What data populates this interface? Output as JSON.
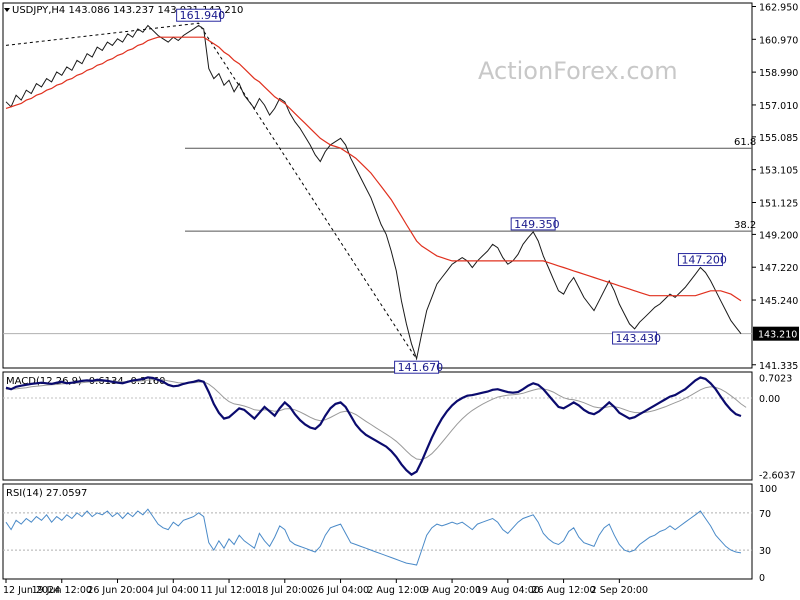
{
  "watermark": "ActionForex.com",
  "colors": {
    "price": "#1a1a1a",
    "ema": "#e0301e",
    "macd": "#0b0b6e",
    "signal": "#9a9a9a",
    "rsi": "#4a8ac8",
    "fib": "#555555",
    "label_border": "#2a2aa0",
    "label_text": "#1a1a8c"
  },
  "chart_data": [
    {
      "type": "line",
      "panel": "price",
      "title": "USDJPY,H4  143.086 143.237 143.031 143.210",
      "ylim": [
        141.2,
        163.1
      ],
      "y_ticks": [
        "162.950",
        "160.970",
        "158.990",
        "157.010",
        "155.085",
        "153.105",
        "151.125",
        "149.200",
        "147.220",
        "145.240",
        "143.210",
        "141.335"
      ],
      "y_tick_values": [
        162.95,
        160.97,
        158.99,
        157.01,
        155.085,
        153.105,
        151.125,
        149.2,
        147.22,
        145.24,
        143.21,
        141.335
      ],
      "current_price": "143.210",
      "x_ticks": [
        "12 Jun 2024",
        "19 Jun 12:00",
        "26 Jun 20:00",
        "4 Jul 04:00",
        "11 Jul 12:00",
        "18 Jul 20:00",
        "26 Jul 04:00",
        "2 Aug 12:00",
        "9 Aug 20:00",
        "19 Aug 04:00",
        "26 Aug 12:00",
        "2 Sep 20:00"
      ],
      "x_tick_index": [
        0,
        11,
        22,
        33,
        44,
        55,
        66,
        77,
        88,
        99,
        110,
        121
      ],
      "series": [
        {
          "key": "close",
          "values": [
            157.2,
            156.9,
            157.6,
            157.3,
            157.9,
            157.7,
            158.3,
            158.1,
            158.6,
            158.4,
            159.0,
            158.8,
            159.3,
            159.1,
            159.7,
            159.5,
            160.1,
            159.9,
            160.5,
            160.3,
            160.8,
            160.6,
            161.0,
            160.8,
            161.3,
            161.1,
            161.6,
            161.4,
            161.8,
            161.5,
            161.2,
            161.0,
            160.8,
            161.1,
            160.9,
            161.2,
            161.4,
            161.6,
            161.8,
            161.6,
            159.2,
            158.6,
            158.9,
            158.2,
            158.5,
            157.8,
            158.3,
            157.6,
            157.2,
            156.8,
            157.4,
            157.0,
            156.4,
            156.8,
            157.4,
            157.2,
            156.5,
            156.0,
            155.6,
            155.1,
            154.6,
            154.0,
            153.6,
            154.2,
            154.6,
            154.8,
            155.0,
            154.6,
            153.8,
            153.2,
            152.6,
            152.0,
            151.4,
            150.6,
            149.8,
            149.2,
            148.2,
            147.0,
            145.2,
            143.8,
            142.6,
            141.7,
            143.2,
            144.6,
            145.4,
            146.2,
            146.6,
            147.0,
            147.4,
            147.6,
            147.8,
            147.6,
            147.2,
            147.6,
            147.9,
            148.2,
            148.6,
            148.4,
            147.8,
            147.4,
            147.6,
            148.0,
            148.6,
            149.0,
            149.35,
            148.8,
            147.9,
            147.2,
            146.5,
            145.8,
            145.6,
            146.2,
            146.6,
            146.0,
            145.4,
            145.0,
            144.6,
            145.2,
            145.8,
            146.4,
            145.8,
            145.0,
            144.4,
            143.8,
            143.5,
            143.9,
            144.2,
            144.5,
            144.8,
            145.0,
            145.3,
            145.6,
            145.4,
            145.7,
            146.0,
            146.4,
            146.8,
            147.2,
            146.9,
            146.4,
            145.8,
            145.2,
            144.6,
            144.0,
            143.6,
            143.21
          ]
        },
        {
          "key": "ema",
          "values": [
            156.8,
            156.9,
            157.0,
            157.1,
            157.3,
            157.4,
            157.6,
            157.7,
            157.9,
            158.0,
            158.2,
            158.3,
            158.5,
            158.6,
            158.8,
            158.9,
            159.1,
            159.2,
            159.4,
            159.5,
            159.7,
            159.8,
            160.0,
            160.1,
            160.3,
            160.4,
            160.6,
            160.7,
            160.9,
            161.0,
            161.1,
            161.1,
            161.1,
            161.1,
            161.1,
            161.1,
            161.1,
            161.1,
            161.1,
            161.1,
            160.9,
            160.7,
            160.5,
            160.2,
            160.0,
            159.7,
            159.5,
            159.2,
            158.9,
            158.6,
            158.4,
            158.1,
            157.8,
            157.5,
            157.3,
            157.1,
            156.8,
            156.5,
            156.2,
            155.9,
            155.6,
            155.3,
            155.0,
            154.8,
            154.6,
            154.5,
            154.4,
            154.2,
            154.0,
            153.8,
            153.5,
            153.2,
            152.9,
            152.5,
            152.1,
            151.7,
            151.3,
            150.8,
            150.3,
            149.8,
            149.3,
            148.8,
            148.5,
            148.3,
            148.1,
            147.9,
            147.8,
            147.7,
            147.6,
            147.6,
            147.6,
            147.6,
            147.6,
            147.6,
            147.6,
            147.6,
            147.6,
            147.6,
            147.6,
            147.6,
            147.6,
            147.6,
            147.6,
            147.6,
            147.6,
            147.6,
            147.6,
            147.5,
            147.4,
            147.3,
            147.2,
            147.1,
            147.0,
            146.9,
            146.8,
            146.7,
            146.6,
            146.5,
            146.4,
            146.3,
            146.2,
            146.1,
            146.0,
            145.9,
            145.8,
            145.7,
            145.6,
            145.5,
            145.5,
            145.5,
            145.5,
            145.5,
            145.5,
            145.5,
            145.5,
            145.5,
            145.5,
            145.6,
            145.7,
            145.8,
            145.8,
            145.8,
            145.7,
            145.6,
            145.4,
            145.2
          ]
        }
      ],
      "fib_levels": [
        {
          "label": "61.8",
          "value": 154.4
        },
        {
          "label": "38.2",
          "value": 149.4
        }
      ],
      "annotations": [
        {
          "label": "161.940",
          "x_index": 38,
          "value": 161.94,
          "side": "above"
        },
        {
          "label": "149.350",
          "x_index": 104,
          "value": 149.35,
          "side": "above"
        },
        {
          "label": "147.200",
          "x_index": 137,
          "value": 147.2,
          "side": "above"
        },
        {
          "label": "143.430",
          "x_index": 124,
          "value": 143.43,
          "side": "below"
        },
        {
          "label": "141.670",
          "x_index": 81,
          "value": 141.67,
          "side": "below"
        }
      ],
      "trendline": [
        {
          "x_index": 0,
          "value": 160.6
        },
        {
          "x_index": 38,
          "value": 161.94
        },
        {
          "x_index": 81,
          "value": 141.67
        }
      ]
    },
    {
      "type": "line",
      "panel": "macd",
      "title": "MACD(12,26,9) -0.6134 -0.3160",
      "ylim": [
        -2.75,
        0.85
      ],
      "y_ticks": [
        "0.7023",
        "0.00",
        "-2.6037"
      ],
      "y_tick_values": [
        0.7023,
        0.0,
        -2.6037
      ],
      "series": [
        {
          "key": "macd",
          "values": [
            0.35,
            0.3,
            0.38,
            0.42,
            0.45,
            0.48,
            0.5,
            0.52,
            0.5,
            0.48,
            0.52,
            0.55,
            0.5,
            0.52,
            0.55,
            0.58,
            0.6,
            0.58,
            0.62,
            0.6,
            0.58,
            0.55,
            0.52,
            0.5,
            0.55,
            0.6,
            0.62,
            0.65,
            0.7,
            0.68,
            0.62,
            0.55,
            0.45,
            0.4,
            0.42,
            0.48,
            0.52,
            0.55,
            0.6,
            0.55,
            0.2,
            -0.2,
            -0.5,
            -0.7,
            -0.65,
            -0.5,
            -0.35,
            -0.4,
            -0.55,
            -0.7,
            -0.5,
            -0.3,
            -0.45,
            -0.6,
            -0.35,
            -0.15,
            -0.3,
            -0.55,
            -0.75,
            -0.9,
            -1.0,
            -1.05,
            -0.9,
            -0.6,
            -0.35,
            -0.2,
            -0.15,
            -0.3,
            -0.6,
            -0.9,
            -1.1,
            -1.25,
            -1.35,
            -1.45,
            -1.55,
            -1.65,
            -1.8,
            -2.0,
            -2.25,
            -2.45,
            -2.6,
            -2.5,
            -2.15,
            -1.75,
            -1.35,
            -1.0,
            -0.7,
            -0.45,
            -0.25,
            -0.1,
            0.0,
            0.08,
            0.1,
            0.14,
            0.18,
            0.22,
            0.28,
            0.3,
            0.25,
            0.2,
            0.18,
            0.2,
            0.3,
            0.42,
            0.5,
            0.45,
            0.3,
            0.1,
            -0.1,
            -0.3,
            -0.35,
            -0.25,
            -0.15,
            -0.25,
            -0.4,
            -0.5,
            -0.55,
            -0.45,
            -0.3,
            -0.15,
            -0.3,
            -0.5,
            -0.6,
            -0.7,
            -0.65,
            -0.55,
            -0.45,
            -0.35,
            -0.25,
            -0.15,
            -0.05,
            0.05,
            0.1,
            0.2,
            0.3,
            0.45,
            0.6,
            0.7,
            0.65,
            0.5,
            0.3,
            0.05,
            -0.2,
            -0.4,
            -0.55,
            -0.61
          ]
        },
        {
          "key": "signal",
          "values": [
            0.3,
            0.3,
            0.31,
            0.33,
            0.35,
            0.38,
            0.4,
            0.42,
            0.44,
            0.45,
            0.46,
            0.48,
            0.49,
            0.5,
            0.51,
            0.52,
            0.54,
            0.55,
            0.56,
            0.57,
            0.57,
            0.57,
            0.56,
            0.55,
            0.55,
            0.56,
            0.57,
            0.59,
            0.61,
            0.63,
            0.63,
            0.62,
            0.58,
            0.55,
            0.52,
            0.51,
            0.51,
            0.52,
            0.54,
            0.55,
            0.47,
            0.34,
            0.18,
            0.01,
            -0.12,
            -0.2,
            -0.23,
            -0.27,
            -0.33,
            -0.4,
            -0.42,
            -0.4,
            -0.41,
            -0.45,
            -0.43,
            -0.37,
            -0.36,
            -0.4,
            -0.47,
            -0.56,
            -0.65,
            -0.73,
            -0.77,
            -0.74,
            -0.66,
            -0.57,
            -0.48,
            -0.45,
            -0.48,
            -0.56,
            -0.67,
            -0.79,
            -0.9,
            -1.01,
            -1.12,
            -1.23,
            -1.34,
            -1.47,
            -1.63,
            -1.8,
            -1.96,
            -2.07,
            -2.09,
            -2.02,
            -1.89,
            -1.71,
            -1.51,
            -1.3,
            -1.09,
            -0.89,
            -0.71,
            -0.55,
            -0.42,
            -0.31,
            -0.21,
            -0.12,
            -0.04,
            0.03,
            0.07,
            0.1,
            0.11,
            0.13,
            0.16,
            0.22,
            0.27,
            0.31,
            0.31,
            0.27,
            0.2,
            0.1,
            0.01,
            -0.04,
            -0.06,
            -0.1,
            -0.16,
            -0.23,
            -0.3,
            -0.33,
            -0.33,
            -0.29,
            -0.29,
            -0.33,
            -0.39,
            -0.45,
            -0.49,
            -0.5,
            -0.49,
            -0.46,
            -0.42,
            -0.36,
            -0.3,
            -0.23,
            -0.16,
            -0.09,
            -0.01,
            0.08,
            0.18,
            0.28,
            0.35,
            0.38,
            0.36,
            0.3,
            0.2,
            0.08,
            -0.05,
            -0.2,
            -0.32
          ]
        }
      ]
    },
    {
      "type": "line",
      "panel": "rsi",
      "title": "RSI(14) 27.0597",
      "ylim": [
        0,
        100
      ],
      "y_ticks": [
        "100",
        "70",
        "30",
        "0"
      ],
      "y_tick_values": [
        100,
        70,
        30,
        0
      ],
      "levels": [
        70,
        30
      ],
      "series": [
        {
          "key": "rsi",
          "values": [
            60,
            52,
            62,
            58,
            64,
            60,
            66,
            62,
            68,
            60,
            66,
            62,
            68,
            64,
            70,
            66,
            72,
            66,
            70,
            68,
            72,
            66,
            70,
            64,
            70,
            66,
            72,
            68,
            74,
            66,
            58,
            54,
            52,
            60,
            56,
            62,
            64,
            66,
            70,
            66,
            38,
            30,
            40,
            32,
            42,
            36,
            46,
            40,
            36,
            32,
            48,
            40,
            34,
            44,
            56,
            52,
            40,
            36,
            34,
            32,
            30,
            28,
            34,
            46,
            54,
            56,
            58,
            48,
            38,
            36,
            34,
            32,
            30,
            28,
            26,
            24,
            22,
            20,
            18,
            16,
            15,
            14,
            30,
            46,
            54,
            58,
            56,
            58,
            60,
            58,
            60,
            56,
            52,
            58,
            60,
            62,
            64,
            60,
            52,
            48,
            54,
            60,
            64,
            66,
            68,
            60,
            48,
            42,
            38,
            36,
            40,
            50,
            54,
            44,
            38,
            36,
            34,
            46,
            54,
            58,
            46,
            36,
            30,
            28,
            30,
            36,
            40,
            44,
            46,
            50,
            52,
            56,
            52,
            56,
            60,
            64,
            68,
            72,
            64,
            56,
            46,
            40,
            34,
            30,
            28,
            27
          ]
        }
      ]
    }
  ]
}
